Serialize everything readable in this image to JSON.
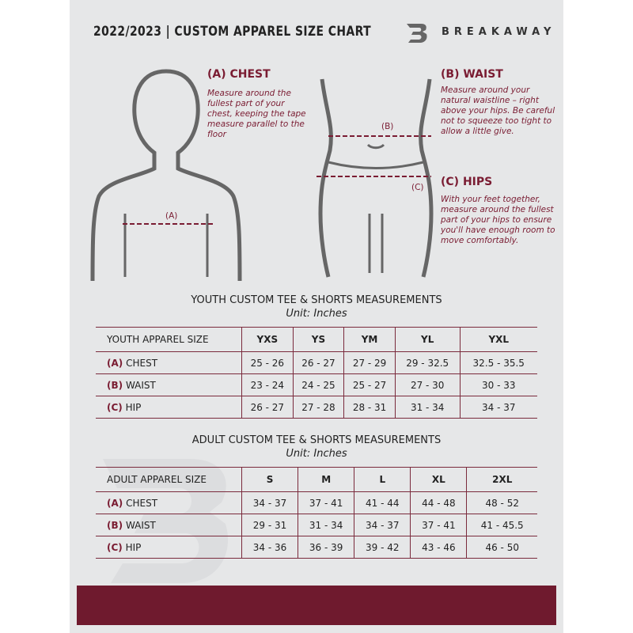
{
  "header": {
    "title": "2022/2023  |  CUSTOM APPAREL SIZE CHART",
    "brand": "BREAKAWAY"
  },
  "colors": {
    "accent": "#7a1c32",
    "band": "#6f1a2e",
    "background": "#e6e7e8"
  },
  "guide": {
    "chest": {
      "heading": "(A) CHEST",
      "text": "Measure around the fullest part of your chest, keeping the tape measure parallel to the floor",
      "marker": "(A)"
    },
    "waist": {
      "heading": "(B) WAIST",
      "text": "Measure around your natural waistline – right above your hips. Be careful not to squeeze too tight to allow a little give.",
      "marker": "(B)"
    },
    "hips": {
      "heading": "(C) HIPS",
      "text": "With your feet together, measure around the fullest part of your hips to ensure you'll have enough room to move comfortably.",
      "marker": "(C)"
    }
  },
  "youth": {
    "title": "YOUTH CUSTOM TEE & SHORTS MEASUREMENTS",
    "unit": "Unit: Inches",
    "size_label": "YOUTH APPAREL SIZE",
    "sizes": [
      "YXS",
      "YS",
      "YM",
      "YL",
      "YXL"
    ],
    "rows": [
      {
        "code": "(A)",
        "name": "CHEST",
        "values": [
          "25 - 26",
          "26 - 27",
          "27 - 29",
          "29 - 32.5",
          "32.5 - 35.5"
        ]
      },
      {
        "code": "(B)",
        "name": "WAIST",
        "values": [
          "23 - 24",
          "24 - 25",
          "25 - 27",
          "27 - 30",
          "30 - 33"
        ]
      },
      {
        "code": "(C)",
        "name": "HIP",
        "values": [
          "26 - 27",
          "27 - 28",
          "28 - 31",
          "31 - 34",
          "34 - 37"
        ]
      }
    ]
  },
  "adult": {
    "title": "ADULT CUSTOM TEE & SHORTS MEASUREMENTS",
    "unit": "Unit: Inches",
    "size_label": "ADULT APPAREL SIZE",
    "sizes": [
      "S",
      "M",
      "L",
      "XL",
      "2XL"
    ],
    "rows": [
      {
        "code": "(A)",
        "name": "CHEST",
        "values": [
          "34 - 37",
          "37 - 41",
          "41 - 44",
          "44 - 48",
          "48 - 52"
        ]
      },
      {
        "code": "(B)",
        "name": "WAIST",
        "values": [
          "29 - 31",
          "31 - 34",
          "34 - 37",
          "37 - 41",
          "41 - 45.5"
        ]
      },
      {
        "code": "(C)",
        "name": "HIP",
        "values": [
          "34 - 36",
          "36 - 39",
          "39 - 42",
          "43 - 46",
          "46 - 50"
        ]
      }
    ]
  }
}
